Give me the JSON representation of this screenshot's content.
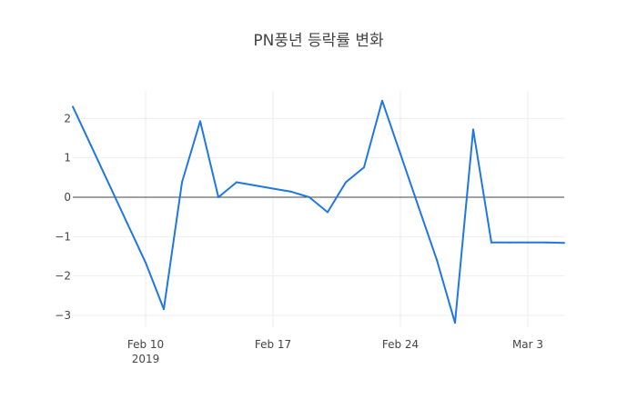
{
  "chart_data": {
    "type": "line",
    "title": "PN풍년 등락률 변화",
    "xlabel": "",
    "ylabel": "",
    "x_range": [
      "2019-02-06",
      "2019-03-05"
    ],
    "y_range": [
      -3.3,
      2.7
    ],
    "x_ticks": [
      {
        "date": "2019-02-10",
        "label": "Feb 10",
        "sublabel": "2019"
      },
      {
        "date": "2019-02-17",
        "label": "Feb 17",
        "sublabel": ""
      },
      {
        "date": "2019-02-24",
        "label": "Feb 24",
        "sublabel": ""
      },
      {
        "date": "2019-03-03",
        "label": "Mar 3",
        "sublabel": ""
      }
    ],
    "y_ticks": [
      {
        "value": 2,
        "label": "2"
      },
      {
        "value": 1,
        "label": "1"
      },
      {
        "value": 0,
        "label": "0"
      },
      {
        "value": -1,
        "label": "−1"
      },
      {
        "value": -2,
        "label": "−2"
      },
      {
        "value": -3,
        "label": "−3"
      }
    ],
    "grid": true,
    "series": [
      {
        "color": "#1f77e4",
        "x": [
          "2019-02-06",
          "2019-02-07",
          "2019-02-08",
          "2019-02-09",
          "2019-02-10",
          "2019-02-11",
          "2019-02-12",
          "2019-02-13",
          "2019-02-14",
          "2019-02-15",
          "2019-02-16",
          "2019-02-17",
          "2019-02-18",
          "2019-02-19",
          "2019-02-20",
          "2019-02-21",
          "2019-02-22",
          "2019-02-23",
          "2019-02-24",
          "2019-02-25",
          "2019-02-26",
          "2019-02-27",
          "2019-02-28",
          "2019-03-01",
          "2019-03-02",
          "2019-03-03",
          "2019-03-04",
          "2019-03-05"
        ],
        "values": [
          2.3,
          1.31,
          0.32,
          -0.67,
          -1.66,
          -2.84,
          0.38,
          1.93,
          0.0,
          0.38,
          0.3,
          0.22,
          0.14,
          0.0,
          -0.38,
          0.38,
          0.76,
          2.45,
          1.1,
          -0.25,
          -1.59,
          -3.19,
          1.72,
          -1.15,
          -1.15,
          -1.15,
          -1.15,
          -1.16
        ]
      }
    ]
  }
}
